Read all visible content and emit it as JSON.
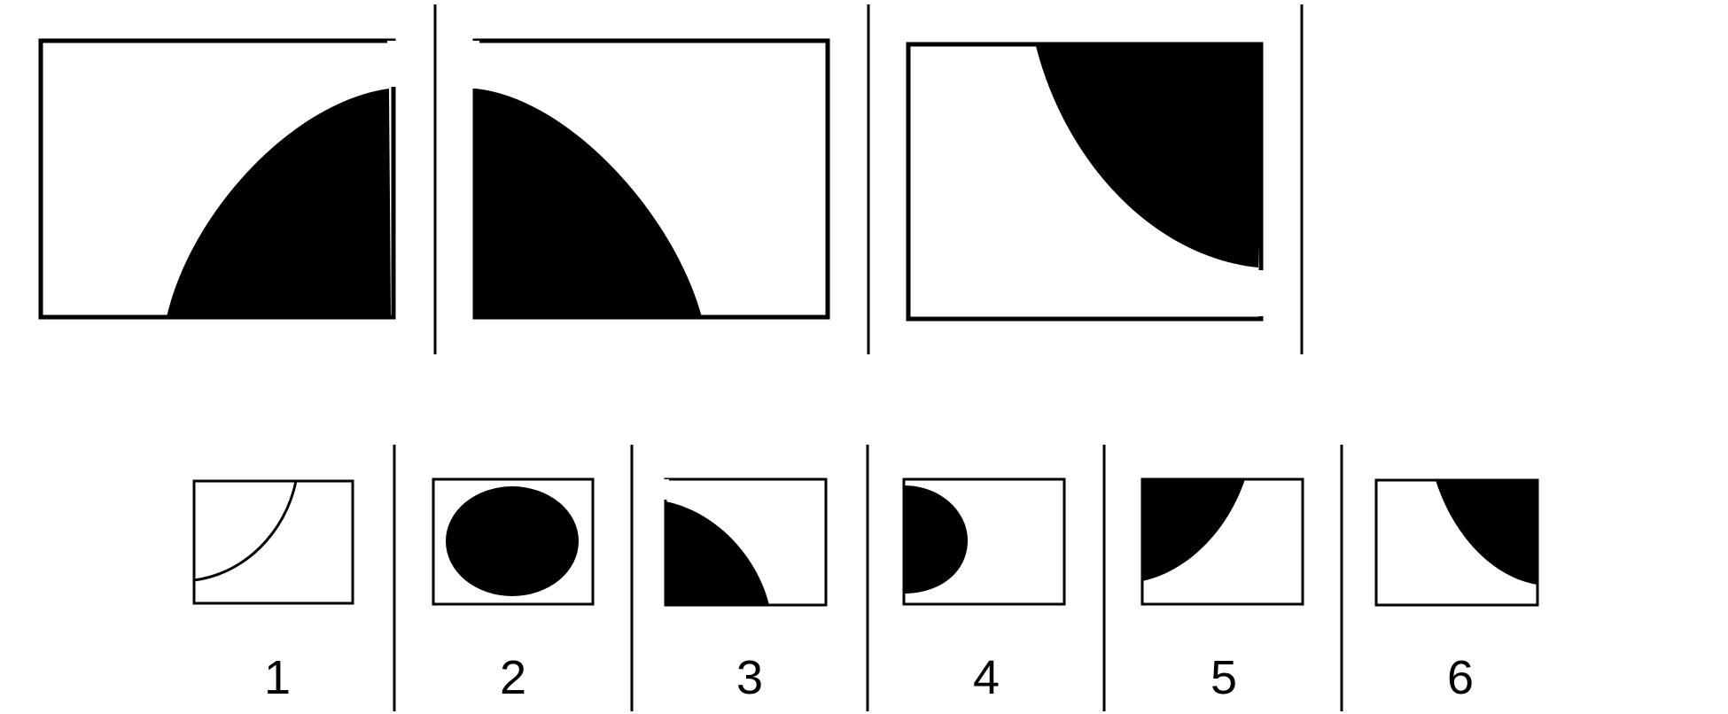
{
  "puzzle": {
    "sequence_panel_count": 3,
    "options": [
      {
        "number": "1"
      },
      {
        "number": "2"
      },
      {
        "number": "3"
      },
      {
        "number": "4"
      },
      {
        "number": "5"
      },
      {
        "number": "6"
      }
    ]
  },
  "colors": {
    "stroke": "#000000",
    "fill": "#000000",
    "background": "#ffffff"
  }
}
